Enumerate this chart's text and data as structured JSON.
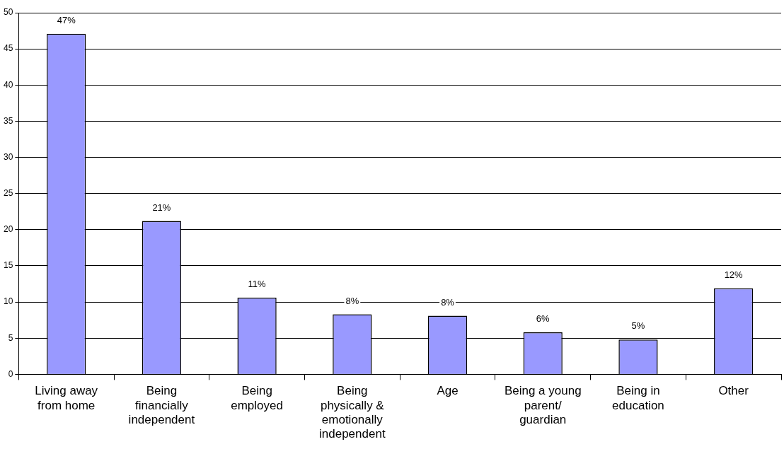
{
  "chart_data": {
    "type": "bar",
    "categories": [
      "Living away from home",
      "Being financially independent",
      "Being employed",
      "Being physically & emotionally independent",
      "Age",
      "Being a young parent/ guardian",
      "Being in education",
      "Other"
    ],
    "values": [
      47.1,
      21.2,
      10.6,
      8.3,
      8.1,
      5.8,
      4.8,
      11.9
    ],
    "value_labels": [
      "47%",
      "21%",
      "11%",
      "8%",
      "8%",
      "6%",
      "5%",
      "12%"
    ],
    "color": "#9999ff",
    "ylim": [
      0,
      50
    ],
    "yticks": [
      0,
      5,
      10,
      15,
      20,
      25,
      30,
      35,
      40,
      45,
      50
    ],
    "grid": "y",
    "legend": false
  }
}
